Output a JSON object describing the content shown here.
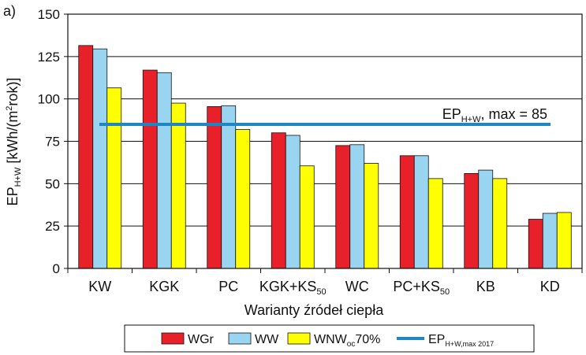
{
  "panel_label": "a)",
  "chart_data": {
    "type": "bar",
    "title": "",
    "xlabel": "Warianty źródeł ciepła",
    "ylabel": {
      "base": "EP",
      "sub": "H+W",
      "unit_pre": " [kWh/(m",
      "unit_sup": "2",
      "unit_post": "rok)]"
    },
    "ylim": [
      0,
      150
    ],
    "yticks": [
      "0",
      "25",
      "50",
      "75",
      "100",
      "125",
      "150"
    ],
    "grid": true,
    "legend_position": "bottom",
    "categories": [
      {
        "base": "KW",
        "sub": ""
      },
      {
        "base": "KGK",
        "sub": ""
      },
      {
        "base": "PC",
        "sub": ""
      },
      {
        "base": "KGK+KS",
        "sub": "50"
      },
      {
        "base": "WC",
        "sub": ""
      },
      {
        "base": "PC+KS",
        "sub": "50"
      },
      {
        "base": "KB",
        "sub": ""
      },
      {
        "base": "KD",
        "sub": ""
      }
    ],
    "series": [
      {
        "name": "WGr",
        "legend_base": "WGr",
        "legend_sub": "",
        "legend_post": "",
        "color": "#e8202a",
        "values": [
          131.5,
          117,
          95.5,
          80,
          72.5,
          66.5,
          56,
          29
        ]
      },
      {
        "name": "WW",
        "legend_base": "WW",
        "legend_sub": "",
        "legend_post": "",
        "color": "#99d5f0",
        "values": [
          129.5,
          115.5,
          96,
          78.5,
          73,
          66.5,
          58,
          32.5
        ]
      },
      {
        "name": "WNWoc70%",
        "legend_base": "WNW",
        "legend_sub": "oc",
        "legend_post": "70%",
        "color": "#ffff00",
        "values": [
          106.5,
          97.5,
          82,
          60.5,
          62,
          53,
          53,
          33
        ]
      }
    ],
    "reference_line": {
      "value": 85,
      "color": "#1e86c3",
      "label_base": "EP",
      "label_sub": "H+W",
      "label_post": ", max = 85",
      "legend_base": "EP",
      "legend_sub": "H+W,max 2017"
    }
  }
}
